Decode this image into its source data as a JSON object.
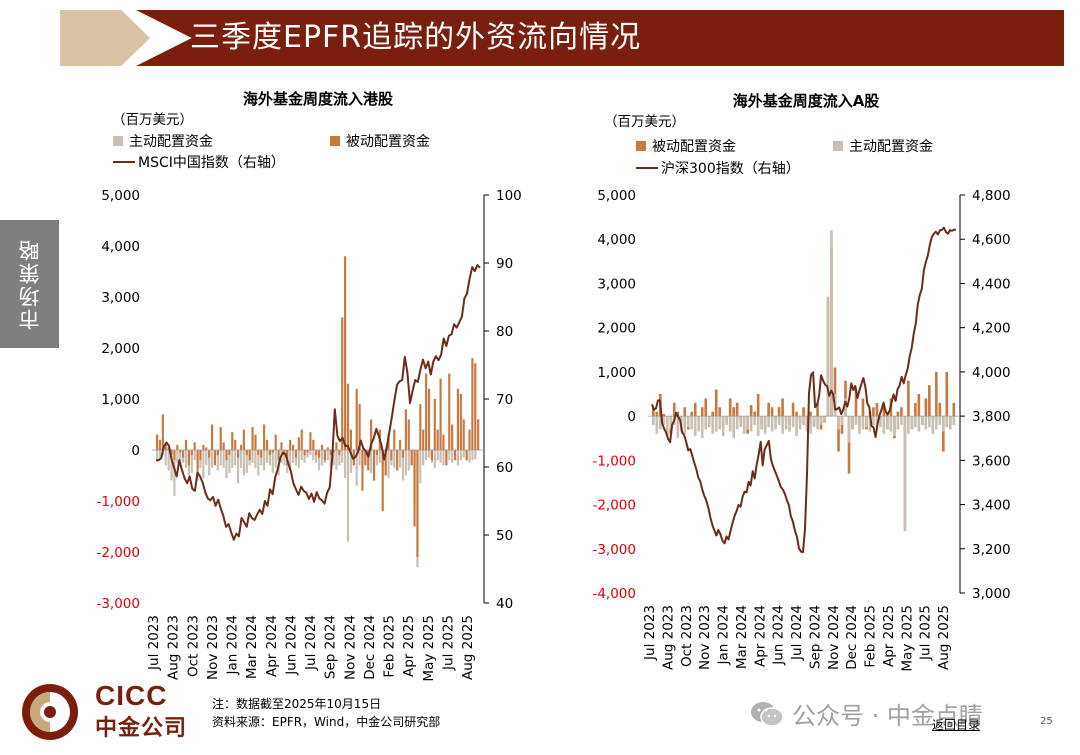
{
  "header": {
    "title": "三季度EPFR追踪的外资流向情况"
  },
  "side_tab": {
    "label": "市场策略"
  },
  "colors": {
    "brand": "#7a1f0d",
    "tan": "#d8c3a5",
    "active_bar": "#c8c0b2",
    "passive_bar": "#c9783f",
    "index_line": "#6b2c1a",
    "negative_tick": "#e00000"
  },
  "chart_data": [
    {
      "type": "bar",
      "title": "海外基金周度流入港股",
      "ylabel": "（百万美元）",
      "ylim": [
        -3000,
        5000
      ],
      "y2lim": [
        40,
        100
      ],
      "yticks": [
        "5,000",
        "4,000",
        "3,000",
        "2,000",
        "1,000",
        "0",
        "-1,000",
        "-2,000",
        "-3,000"
      ],
      "y2ticks": [
        "100",
        "90",
        "80",
        "70",
        "60",
        "50",
        "40"
      ],
      "xticks": [
        "Jul 2023",
        "Aug 2023",
        "Oct 2023",
        "Nov 2023",
        "Jan 2024",
        "Mar 2024",
        "Apr 2024",
        "Jun 2024",
        "Jul 2024",
        "Sep 2024",
        "Nov 2024",
        "Dec 2024",
        "Feb 2025",
        "Apr 2025",
        "May 2025",
        "Jul 2025",
        "Aug 2025"
      ],
      "legend": [
        "主动配置资金",
        "被动配置资金",
        "MSCI中国指数（右轴）"
      ],
      "series": [
        {
          "name": "主动配置资金",
          "kind": "bar",
          "axis": "left",
          "values": [
            -200,
            -150,
            -100,
            -300,
            -400,
            -600,
            -900,
            -250,
            -300,
            -250,
            -350,
            -500,
            -450,
            -200,
            -600,
            -350,
            -550,
            -300,
            -500,
            -350,
            -250,
            -400,
            -300,
            -350,
            -550,
            -450,
            -350,
            -300,
            -650,
            -350,
            -500,
            -450,
            -300,
            -250,
            -350,
            -500,
            -300,
            -400,
            -250,
            -300,
            -450,
            -350,
            -500,
            -250,
            -300,
            -450,
            -400,
            -250,
            -300,
            -350,
            -200,
            -250,
            -150,
            -100,
            -200,
            -250,
            -400,
            -300,
            -250,
            -200,
            -350,
            -300,
            -400,
            -300,
            -250,
            -550,
            -1800,
            -450,
            -300,
            -700,
            -300,
            -400,
            -300,
            -250,
            -450,
            -500,
            -300,
            -250,
            -350,
            -400,
            -550,
            -300,
            -350,
            -250,
            -350,
            -600,
            -500,
            -400,
            -300,
            -1100,
            -2300,
            -650,
            -300,
            -200,
            -150,
            -250,
            -350,
            -200,
            -250,
            -300,
            -150,
            -200,
            -250,
            -150,
            -300,
            -200,
            -150,
            -200,
            -250,
            -200,
            -180
          ]
        },
        {
          "name": "被动配置资金",
          "kind": "bar",
          "axis": "left",
          "values": [
            300,
            200,
            700,
            100,
            50,
            -100,
            -200,
            100,
            -50,
            -150,
            200,
            -300,
            -100,
            150,
            -400,
            -200,
            100,
            50,
            -150,
            500,
            -300,
            -100,
            450,
            150,
            -200,
            -100,
            350,
            200,
            -150,
            100,
            400,
            -100,
            -200,
            450,
            300,
            -100,
            -150,
            500,
            200,
            -100,
            -50,
            300,
            -200,
            150,
            -100,
            -300,
            200,
            100,
            -150,
            250,
            400,
            -100,
            -50,
            350,
            200,
            -100,
            -150,
            100,
            -200,
            50,
            -100,
            -50,
            150,
            -100,
            2600,
            3800,
            1300,
            400,
            -300,
            1200,
            900,
            -800,
            -300,
            -400,
            600,
            -600,
            -100,
            400,
            -1200,
            -500,
            300,
            -200,
            400,
            -400,
            200,
            -150,
            800,
            600,
            -300,
            -1500,
            -2100,
            900,
            400,
            1500,
            1200,
            -200,
            1000,
            400,
            1400,
            300,
            -300,
            1500,
            500,
            -200,
            1200,
            1100,
            600,
            -200,
            400,
            1800,
            1700,
            600
          ]
        },
        {
          "name": "MSCI中国指数（右轴）",
          "kind": "line",
          "axis": "right",
          "values": [
            61,
            61,
            61.3,
            63,
            63.6,
            63.1,
            61.1,
            59.9,
            58.6,
            61,
            59.6,
            58.4,
            57.6,
            58.6,
            56.8,
            56.5,
            59.2,
            58.6,
            57.7,
            56.3,
            55.4,
            55.1,
            55.6,
            54.3,
            55.2,
            53.9,
            52.8,
            51.2,
            51.6,
            50.4,
            49.3,
            50.2,
            49.8,
            52.5,
            51.9,
            51.2,
            53.2,
            52.5,
            52.2,
            53,
            53.7,
            53.1,
            55,
            54.3,
            56.7,
            56,
            58.5,
            59.7,
            61.4,
            62.1,
            61.9,
            60.6,
            59.4,
            57.6,
            56.7,
            55.9,
            57.1,
            56.5,
            56.2,
            55.3,
            56.1,
            54.9,
            56.3,
            55.4,
            55.1,
            54.6,
            56.2,
            57,
            61.5,
            68.5,
            64.6,
            63.8,
            64.3,
            63.1,
            63.1,
            62.2,
            61.2,
            61.5,
            62.3,
            63.9,
            62.7,
            62.3,
            61.5,
            63.4,
            64.2,
            65.6,
            64.5,
            63.2,
            61.1,
            62.9,
            65.1,
            67.4,
            69.9,
            72.1,
            72.6,
            72.8,
            76.2,
            73.9,
            69.4,
            71.2,
            72.8,
            72.5,
            74.3,
            75.8,
            74.5,
            75.5,
            73.6,
            75.5,
            76.3,
            75.7,
            76.5,
            78.9,
            77.8,
            79.3,
            79.5,
            81,
            80.5,
            81.3,
            82.1,
            84.8,
            85.5,
            87.7,
            89.4,
            88.8,
            89.7,
            89.3
          ]
        }
      ]
    },
    {
      "type": "bar",
      "title": "海外基金周度流入A股",
      "ylabel": "（百万美元）",
      "ylim": [
        -4000,
        5000
      ],
      "y2lim": [
        3000,
        4800
      ],
      "yticks": [
        "5,000",
        "4,000",
        "3,000",
        "2,000",
        "1,000",
        "0",
        "-1,000",
        "-2,000",
        "-3,000",
        "-4,000"
      ],
      "y2ticks": [
        "4,800",
        "4,600",
        "4,400",
        "4,200",
        "4,000",
        "3,800",
        "3,600",
        "3,400",
        "3,200",
        "3,000"
      ],
      "xticks": [
        "Jul 2023",
        "Aug 2023",
        "Oct 2023",
        "Nov 2023",
        "Jan 2024",
        "Mar 2024",
        "Apr 2024",
        "Jun 2024",
        "Jul 2024",
        "Sep 2024",
        "Nov 2024",
        "Dec 2024",
        "Feb 2025",
        "Apr 2025",
        "May 2025",
        "Jul 2025",
        "Aug 2025"
      ],
      "legend": [
        "被动配置资金",
        "主动配置资金",
        "沪深300指数（右轴）"
      ],
      "series": [
        {
          "name": "被动配置资金",
          "kind": "bar",
          "axis": "left",
          "values": [
            200,
            100,
            500,
            50,
            -100,
            -400,
            300,
            100,
            -200,
            200,
            -300,
            100,
            300,
            -100,
            200,
            400,
            -200,
            100,
            600,
            200,
            -300,
            -150,
            400,
            200,
            300,
            -100,
            -200,
            -400,
            250,
            100,
            500,
            -200,
            -300,
            300,
            200,
            -100,
            200,
            400,
            -100,
            -200,
            300,
            100,
            -150,
            200,
            -250,
            100,
            -200,
            300,
            -300,
            -150,
            2600,
            3800,
            1100,
            -800,
            -400,
            800,
            -1300,
            -300,
            600,
            -200,
            400,
            -300,
            100,
            200,
            300,
            -100,
            200,
            -300,
            400,
            -500,
            100,
            200,
            -2500,
            800,
            -300,
            300,
            500,
            -200,
            400,
            700,
            -100,
            1000,
            300,
            -800,
            1000,
            -200,
            300
          ]
        },
        {
          "name": "主动配置资金",
          "kind": "bar",
          "axis": "left",
          "values": [
            -200,
            -400,
            -300,
            -200,
            -450,
            -300,
            -200,
            -500,
            -350,
            -400,
            -250,
            -300,
            -450,
            -350,
            -500,
            -300,
            -250,
            -400,
            -350,
            -300,
            -450,
            -200,
            -350,
            -500,
            -300,
            -250,
            -400,
            -300,
            -350,
            -200,
            -450,
            -300,
            -400,
            -250,
            -350,
            -300,
            -200,
            -400,
            -300,
            -350,
            -250,
            -450,
            -300,
            -200,
            -350,
            -400,
            -250,
            -300,
            -200,
            -150,
            2700,
            4200,
            500,
            -300,
            -200,
            400,
            -600,
            -300,
            -200,
            -400,
            -300,
            -250,
            -350,
            -200,
            -300,
            -250,
            -400,
            -300,
            -350,
            -450,
            -300,
            -200,
            -2600,
            -400,
            -300,
            -250,
            -350,
            -200,
            -300,
            -250,
            -400,
            -300,
            -200,
            -350,
            -250,
            -300,
            -200
          ]
        },
        {
          "name": "沪深300指数（右轴）",
          "kind": "line",
          "axis": "right",
          "values": [
            3853,
            3829,
            3836,
            3871,
            3870,
            3768,
            3744,
            3726,
            3697,
            3682,
            3760,
            3779,
            3815,
            3797,
            3781,
            3725,
            3714,
            3683,
            3645,
            3651,
            3620,
            3589,
            3560,
            3522,
            3505,
            3467,
            3439,
            3417,
            3384,
            3341,
            3307,
            3283,
            3260,
            3285,
            3265,
            3236,
            3225,
            3256,
            3242,
            3280,
            3316,
            3348,
            3371,
            3398,
            3390,
            3435,
            3458,
            3455,
            3503,
            3486,
            3551,
            3518,
            3582,
            3627,
            3684,
            3577,
            3651,
            3669,
            3688,
            3609,
            3576,
            3553,
            3531,
            3507,
            3480,
            3467,
            3448,
            3420,
            3396,
            3346,
            3323,
            3282,
            3253,
            3202,
            3187,
            3185,
            3290,
            3536,
            3905,
            3985,
            3998,
            3840,
            3852,
            3892,
            3985,
            3960,
            3942,
            3935,
            3892,
            3916,
            3898,
            3829,
            3832,
            3840,
            3809,
            3830,
            3865,
            3843,
            3880,
            3948,
            3918,
            3936,
            3882,
            3916,
            3946,
            3972,
            3931,
            3856,
            3840,
            3756,
            3749,
            3705,
            3764,
            3803,
            3829,
            3861,
            3823,
            3806,
            3825,
            3862,
            3898,
            3869,
            3922,
            3938,
            3978,
            3948,
            3985,
            4015,
            4071,
            4108,
            4172,
            4216,
            4302,
            4348,
            4376,
            4458,
            4496,
            4526,
            4574,
            4610,
            4625,
            4634,
            4622,
            4640,
            4642,
            4652,
            4633,
            4625,
            4641,
            4638,
            4643,
            4643
          ]
        }
      ]
    }
  ],
  "notes": {
    "line1": "注：数据截至2025年10月15日",
    "line2": "资料来源：EPFR，Wind，中金公司研究部"
  },
  "footer": {
    "cicc_en": "CICC",
    "cicc_cn": "中金公司",
    "watermark": "公众号 · 中金点睛",
    "back_link": "返回目录",
    "page_number": "25"
  }
}
